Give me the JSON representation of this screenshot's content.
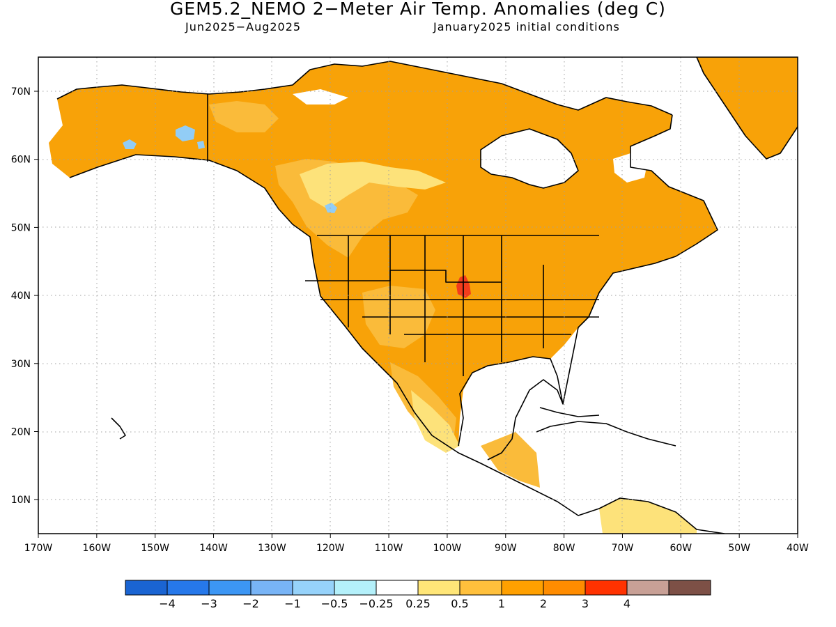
{
  "title": "GEM5.2_NEMO 2−Meter Air Temp. Anomalies (deg C)",
  "subtitle_left": "Jun2025−Aug2025",
  "subtitle_right": "January2025 initial conditions",
  "axes": {
    "lon_labels": [
      "170W",
      "160W",
      "150W",
      "140W",
      "130W",
      "120W",
      "110W",
      "100W",
      "90W",
      "80W",
      "70W",
      "60W",
      "50W",
      "40W"
    ],
    "lat_labels": [
      "70N",
      "60N",
      "50N",
      "40N",
      "30N",
      "20N",
      "10N"
    ]
  },
  "colorbar": {
    "colors": [
      "#1a64d2",
      "#2678ea",
      "#3c96f4",
      "#78b4f6",
      "#96d2fa",
      "#b4f0fa",
      "#ffffff",
      "#ffe678",
      "#ffc03c",
      "#ffa000",
      "#ff8c00",
      "#ff3200",
      "#c8a096",
      "#7d5046"
    ],
    "labels": [
      "−4",
      "−3",
      "−2",
      "−1",
      "−0.5",
      "−0.25",
      "0.25",
      "0.5",
      "1",
      "2",
      "3",
      "4"
    ]
  },
  "map_colors": {
    "anom_1_2": "#f8a208",
    "anom_05_1": "#fabb3a",
    "anom_025_05": "#fde27a",
    "anom_2_3": "#f33c1c",
    "anom_neg": "#92cdf6",
    "coast": "#000000",
    "grid": "#a0a0a0"
  }
}
